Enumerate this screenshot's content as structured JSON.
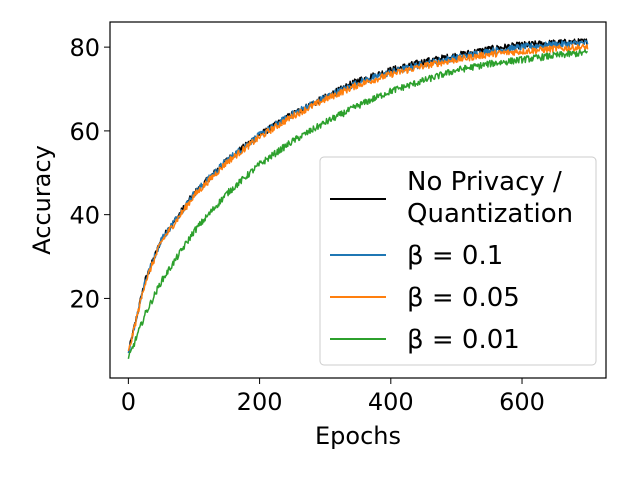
{
  "chart_data": {
    "type": "line",
    "title": "",
    "xlabel": "Epochs",
    "ylabel": "Accuracy",
    "xlim": [
      -28,
      728
    ],
    "ylim": [
      1,
      86
    ],
    "xticks": [
      0,
      200,
      400,
      600
    ],
    "yticks": [
      20,
      40,
      60,
      80
    ],
    "grid": false,
    "legend_position": "lower-right",
    "legend_labels": [
      {
        "lines": [
          "No Privacy /",
          "Quantization"
        ]
      },
      {
        "lines": [
          "β = 0.1"
        ]
      },
      {
        "lines": [
          "β = 0.05"
        ]
      },
      {
        "lines": [
          "β = 0.01"
        ]
      }
    ],
    "series": [
      {
        "name": "No Privacy / Quantization",
        "color": "#000000",
        "x": [
          0,
          25,
          50,
          100,
          150,
          200,
          250,
          300,
          350,
          400,
          450,
          500,
          550,
          600,
          650,
          700
        ],
        "y": [
          7,
          24,
          34,
          45,
          53,
          59,
          64,
          68,
          72,
          74.5,
          76.5,
          78,
          79.5,
          80.5,
          81,
          81.3
        ]
      },
      {
        "name": "β = 0.1",
        "color": "#1f77b4",
        "x": [
          0,
          25,
          50,
          100,
          150,
          200,
          250,
          300,
          350,
          400,
          450,
          500,
          550,
          600,
          650,
          700
        ],
        "y": [
          7,
          24,
          34,
          45,
          53,
          59,
          64,
          68,
          71.5,
          74,
          76,
          77.5,
          79,
          80,
          80.6,
          81
        ]
      },
      {
        "name": "β = 0.05",
        "color": "#ff7f0e",
        "x": [
          0,
          25,
          50,
          100,
          150,
          200,
          250,
          300,
          350,
          400,
          450,
          500,
          550,
          600,
          650,
          700
        ],
        "y": [
          7,
          23.5,
          33.5,
          44.5,
          52.5,
          58.5,
          63.5,
          67.5,
          71,
          73.5,
          75.5,
          77,
          78.3,
          79,
          79.6,
          80
        ]
      },
      {
        "name": "β = 0.01",
        "color": "#2ca02c",
        "x": [
          0,
          25,
          50,
          100,
          150,
          200,
          250,
          300,
          350,
          400,
          450,
          500,
          550,
          600,
          650,
          700
        ],
        "y": [
          5.5,
          16,
          24,
          36,
          45,
          52,
          57.5,
          62,
          66,
          69.5,
          72,
          74.5,
          76,
          77,
          78,
          78.7
        ]
      }
    ]
  }
}
